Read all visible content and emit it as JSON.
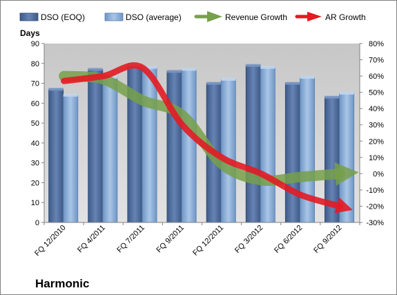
{
  "chart_data": {
    "type": "bar",
    "title": "",
    "company": "Harmonic",
    "ylabel": "Days",
    "categories": [
      "FQ 12/2010",
      "FQ 4/2011",
      "FQ 7/2011",
      "FQ 9/2011",
      "FQ 12/2011",
      "FQ 3/2012",
      "FQ 6/2012",
      "FQ 9/2012"
    ],
    "series": [
      {
        "name": "DSO (EOQ)",
        "type": "bar",
        "axis": "left",
        "color": "#4f6f9f",
        "values": [
          67,
          77,
          78,
          76,
          70,
          79,
          70,
          63
        ]
      },
      {
        "name": "DSO (average)",
        "type": "bar",
        "axis": "left",
        "color": "#8fb1d9",
        "values": [
          64,
          73,
          78,
          77,
          72,
          78,
          73,
          65
        ]
      },
      {
        "name": "Revenue Growth",
        "type": "line",
        "axis": "right",
        "color": "#77a04a",
        "values": [
          0.6,
          0.58,
          0.45,
          0.36,
          0.06,
          -0.04,
          -0.02,
          0.0
        ]
      },
      {
        "name": "AR Growth",
        "type": "line",
        "axis": "right",
        "color": "#e31b23",
        "values": [
          0.57,
          0.6,
          0.65,
          0.3,
          0.1,
          0.0,
          -0.13,
          -0.2
        ]
      }
    ],
    "ylim": [
      0,
      90
    ],
    "yticks": [
      0,
      10,
      20,
      30,
      40,
      50,
      60,
      70,
      80,
      90
    ],
    "ylim_right": [
      -0.3,
      0.8
    ],
    "yticks_right": [
      "-30%",
      "-20%",
      "-10%",
      "0%",
      "10%",
      "20%",
      "30%",
      "40%",
      "50%",
      "60%",
      "70%",
      "80%"
    ],
    "grid": false,
    "legend": "top"
  }
}
